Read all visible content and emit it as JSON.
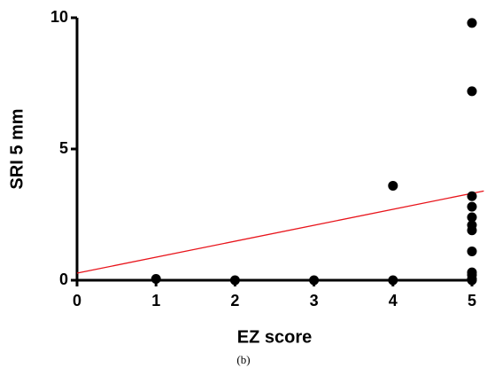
{
  "chart_data": {
    "type": "scatter",
    "x_label": "EZ score",
    "y_label": "SRI 5 mm",
    "xlim": [
      0,
      5
    ],
    "ylim": [
      0,
      10
    ],
    "xticks": [
      0,
      1,
      2,
      3,
      4,
      5
    ],
    "yticks": [
      0,
      5,
      10
    ],
    "points": {
      "color": "#000000",
      "x": [
        1,
        2,
        3,
        4,
        4,
        5,
        5,
        5,
        5,
        5,
        5,
        5,
        5,
        5,
        5,
        5,
        5
      ],
      "y": [
        0.05,
        0,
        0,
        0,
        3.6,
        9.8,
        7.2,
        3.2,
        2.8,
        2.4,
        2.1,
        1.9,
        1.1,
        0.3,
        0.2,
        0.05,
        0
      ]
    },
    "fit_line": {
      "color": "#e8141b",
      "x": [
        0,
        5.15
      ],
      "y": [
        0.27,
        3.4
      ]
    }
  },
  "caption": "(b)"
}
